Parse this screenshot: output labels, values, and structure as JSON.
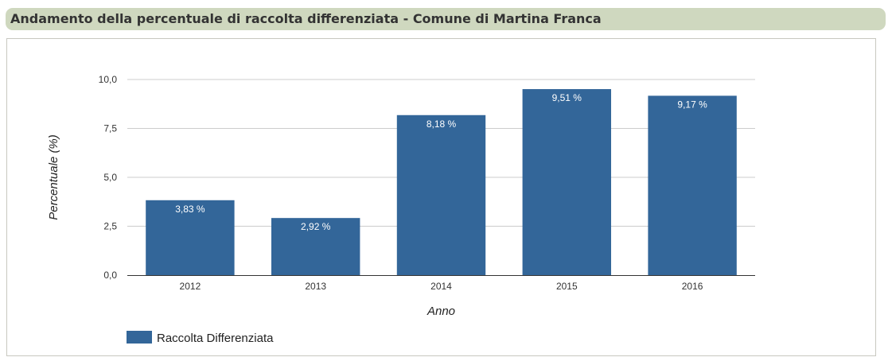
{
  "title": "Andamento della percentuale di raccolta differenziata - Comune di Martina Franca",
  "chart_data": {
    "type": "bar",
    "categories": [
      "2012",
      "2013",
      "2014",
      "2015",
      "2016"
    ],
    "series": [
      {
        "name": "Raccolta Differenziata",
        "values": [
          3.83,
          2.92,
          8.18,
          9.51,
          9.17
        ],
        "labels": [
          "3,83 %",
          "2,92 %",
          "8,18 %",
          "9,51 %",
          "9,17 %"
        ]
      }
    ],
    "xlabel": "Anno",
    "ylabel": "Percentuale (%)",
    "ylim": [
      0,
      10
    ],
    "yticks": [
      0,
      2.5,
      5,
      7.5,
      10
    ],
    "ytick_labels": [
      "0,0",
      "2,5",
      "5,0",
      "7,5",
      "10,0"
    ],
    "grid": true,
    "legend_position": "bottom-left",
    "bar_color": "#336699",
    "label_color": "#ffffff"
  }
}
